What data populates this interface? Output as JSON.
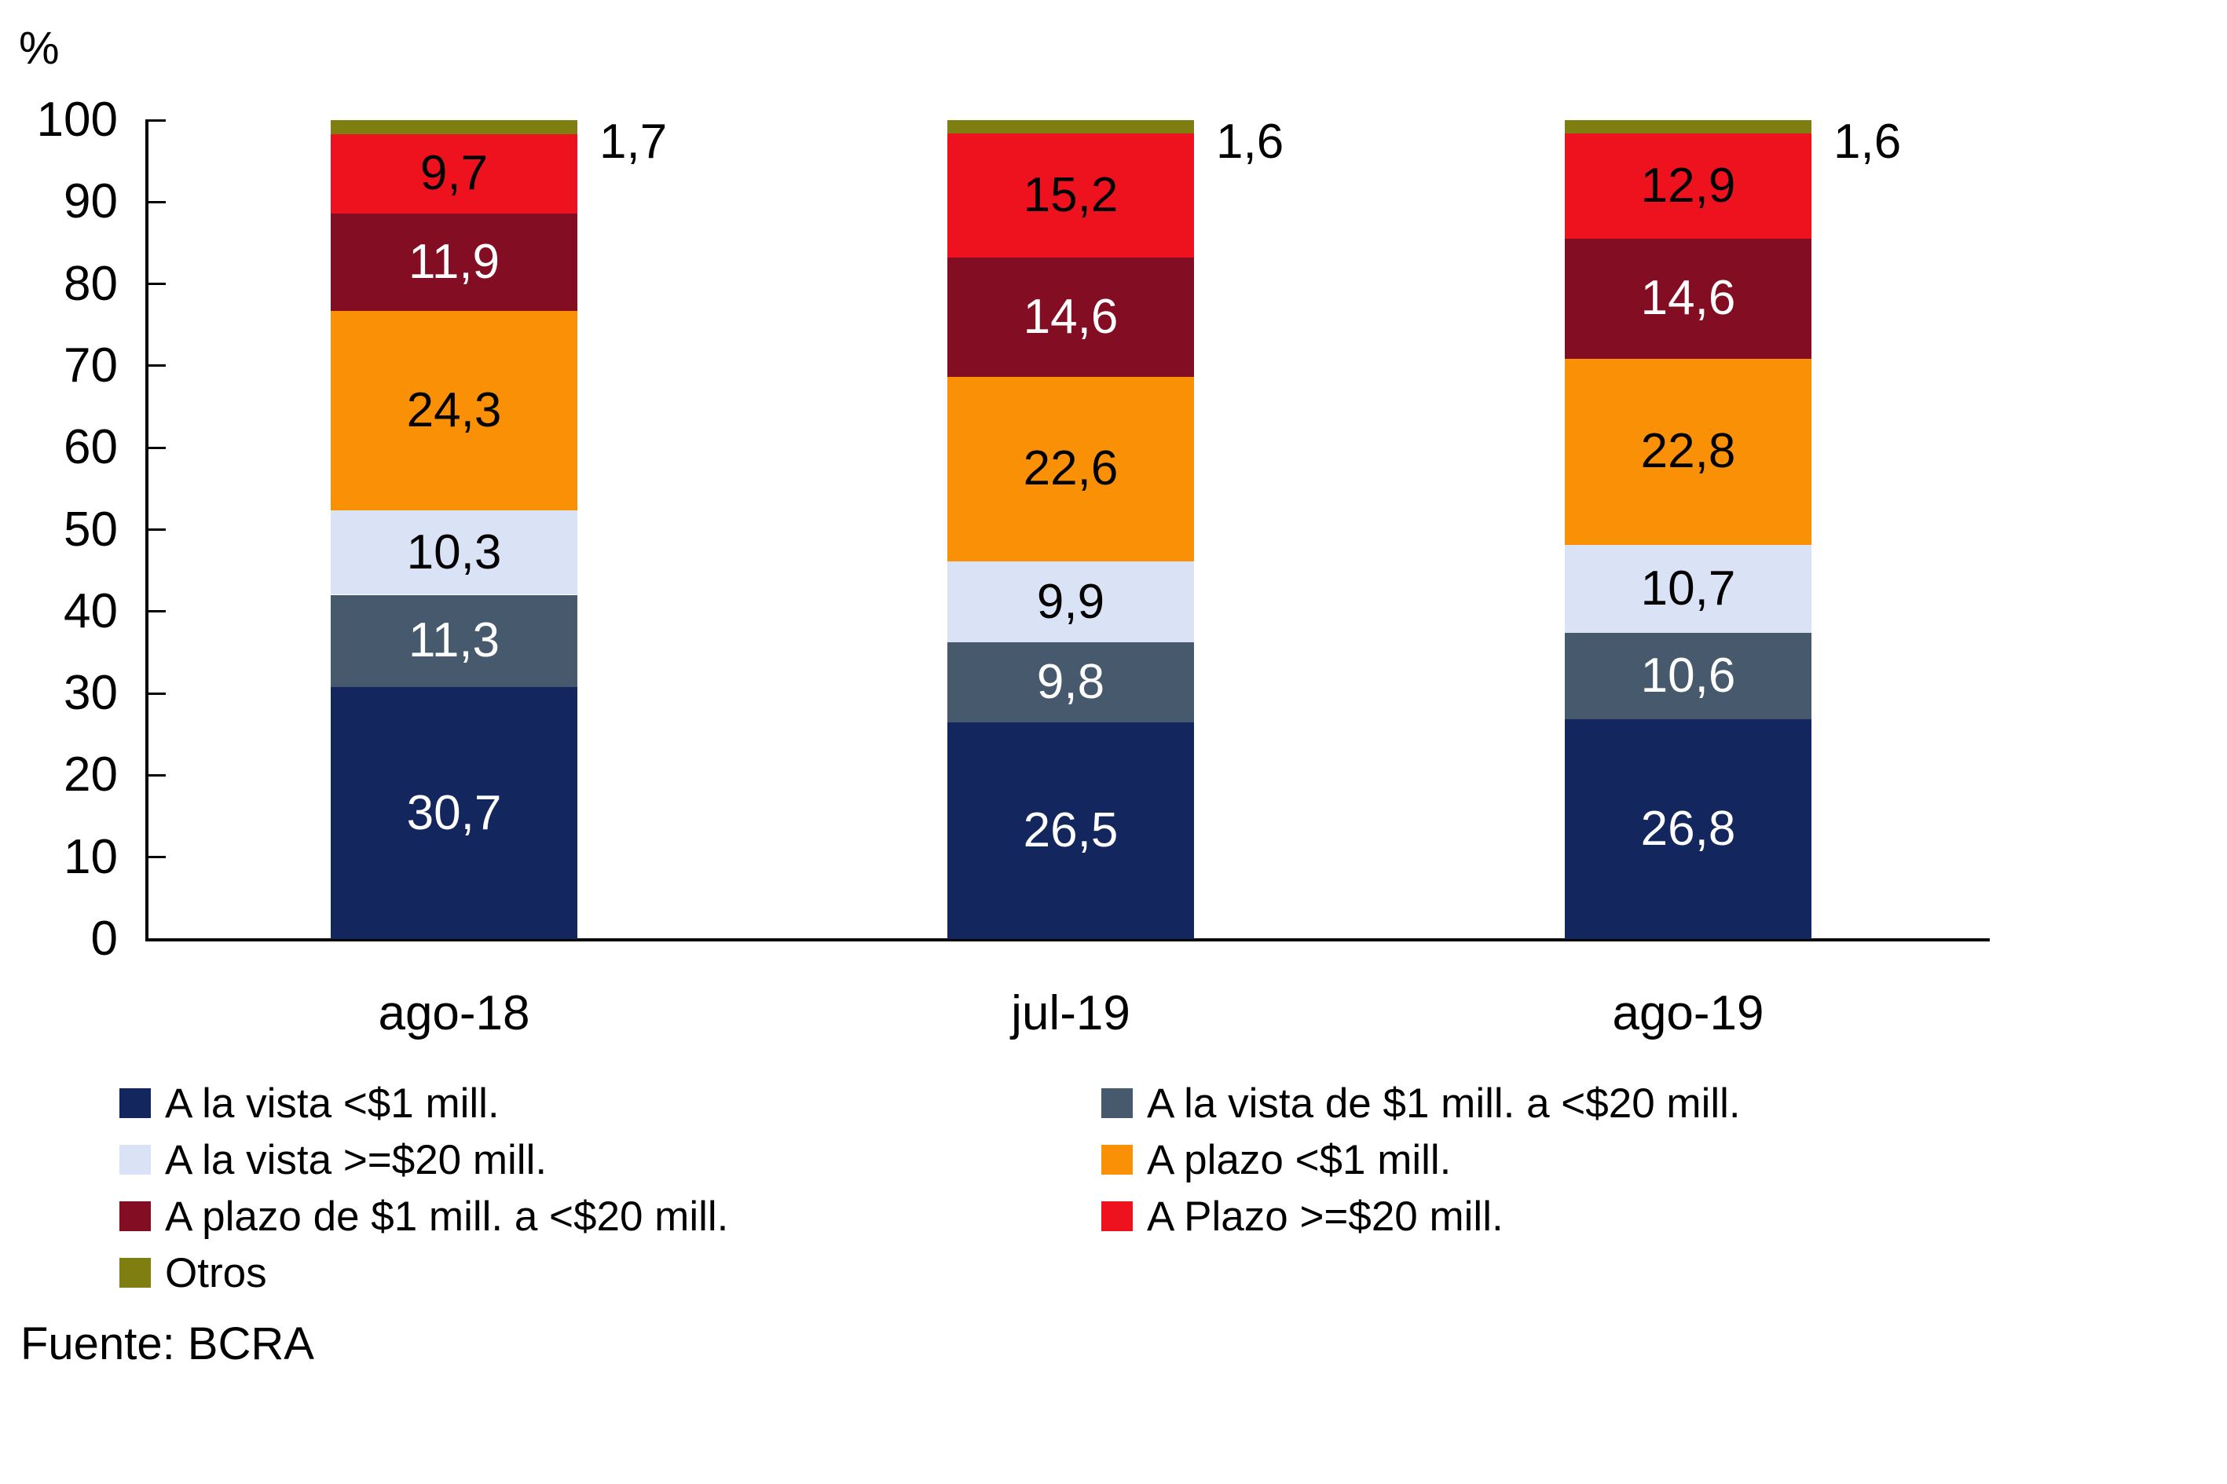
{
  "source": {
    "label": "Fuente: BCRA"
  },
  "chart_data": {
    "type": "bar",
    "stacked": true,
    "title": "",
    "xlabel": "",
    "ylabel": "%",
    "unit_label": "%",
    "ylim": [
      0,
      100
    ],
    "yticks": [
      0,
      10,
      20,
      30,
      40,
      50,
      60,
      70,
      80,
      90,
      100
    ],
    "grid": false,
    "legend_position": "bottom-two-columns",
    "categories": [
      "ago-18",
      "jul-19",
      "ago-19"
    ],
    "series": [
      {
        "name": "A la vista <$1 mill.",
        "color": "#14265E",
        "label_color": "#ffffff",
        "values": [
          30.7,
          26.5,
          26.8
        ],
        "labels": [
          "30,7",
          "26,5",
          "26,8"
        ]
      },
      {
        "name": "A la vista de $1 mill. a <$20 mill.",
        "color": "#47596D",
        "label_color": "#ffffff",
        "values": [
          11.3,
          9.8,
          10.6
        ],
        "labels": [
          "11,3",
          "9,8",
          "10,6"
        ]
      },
      {
        "name": "A la vista >=$20 mill.",
        "color": "#DAE3F5",
        "label_color": "#000000",
        "values": [
          10.3,
          9.9,
          10.7
        ],
        "labels": [
          "10,3",
          "9,9",
          "10,7"
        ]
      },
      {
        "name": "A plazo <$1 mill.",
        "color": "#FA9005",
        "label_color": "#000000",
        "values": [
          24.3,
          22.6,
          22.8
        ],
        "labels": [
          "24,3",
          "22,6",
          "22,8"
        ]
      },
      {
        "name": "A plazo de $1 mill. a <$20 mill.",
        "color": "#830D23",
        "label_color": "#ffffff",
        "values": [
          11.9,
          14.6,
          14.6
        ],
        "labels": [
          "11,9",
          "14,6",
          "14,6"
        ]
      },
      {
        "name": "A Plazo >=$20 mill.",
        "color": "#EE111E",
        "label_color": "#000000",
        "values": [
          9.7,
          15.2,
          12.9
        ],
        "labels": [
          "9,7",
          "15,2",
          "12,9"
        ]
      },
      {
        "name": "Otros",
        "color": "#7F7F11",
        "label_color": "#000000",
        "label_outside": true,
        "values": [
          1.7,
          1.6,
          1.6
        ],
        "labels": [
          "1,7",
          "1,6",
          "1,6"
        ]
      }
    ]
  }
}
